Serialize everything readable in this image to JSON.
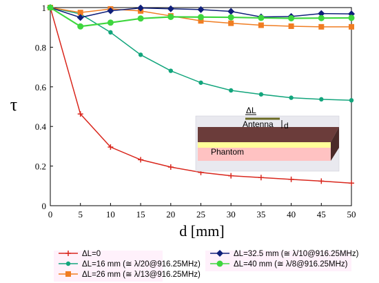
{
  "chart_data": {
    "type": "line",
    "xlabel": "d [mm]",
    "ylabel": "τ",
    "xlim": [
      0,
      50
    ],
    "ylim": [
      0,
      1
    ],
    "xticks": [
      0,
      5,
      10,
      15,
      20,
      25,
      30,
      35,
      40,
      45,
      50
    ],
    "yticks": [
      0,
      0.2,
      0.4,
      0.6,
      0.8,
      1
    ],
    "ytick_labels": [
      "0",
      "0.2",
      "0.4",
      "0.6",
      "0.8",
      "1"
    ],
    "grid": false,
    "legend_position": "bottom",
    "x": [
      0,
      5,
      10,
      15,
      20,
      25,
      30,
      35,
      40,
      45,
      50
    ],
    "series": [
      {
        "name": "ΔL=0",
        "color": "#d9261c",
        "marker": "plus",
        "values": [
          1,
          0.463,
          0.296,
          0.232,
          0.195,
          0.168,
          0.151,
          0.142,
          0.133,
          0.124,
          0.114
        ]
      },
      {
        "name": "ΔL=16 mm (≅ λ/20@916.25MHz)",
        "color": "#12a57c",
        "marker": "circle",
        "values": [
          1,
          0.968,
          0.875,
          0.762,
          0.681,
          0.621,
          0.582,
          0.562,
          0.545,
          0.537,
          0.532
        ]
      },
      {
        "name": "ΔL=26 mm (≅ λ/13@916.25MHz)",
        "color": "#f07d22",
        "marker": "square",
        "values": [
          1,
          0.975,
          0.993,
          0.983,
          0.958,
          0.933,
          0.921,
          0.911,
          0.906,
          0.903,
          0.903
        ]
      },
      {
        "name": "ΔL=32.5 mm (≅ λ/10@916.25MHz)",
        "color": "#0f1f7a",
        "marker": "diamond",
        "values": [
          1,
          0.95,
          0.984,
          0.998,
          0.994,
          0.99,
          0.981,
          0.953,
          0.955,
          0.97,
          0.968
        ]
      },
      {
        "name": "ΔL=40 mm (≅ λ/8@916.25MHz)",
        "color": "#3ed63e",
        "marker": "bigcircle",
        "values": [
          1,
          0.905,
          0.924,
          0.945,
          0.953,
          0.952,
          0.951,
          0.948,
          0.946,
          0.947,
          0.948
        ]
      }
    ],
    "inset": {
      "antenna_label": "Antenna",
      "delta_label": "ΔL",
      "d_label": "d",
      "phantom_label": "Phantom"
    }
  }
}
